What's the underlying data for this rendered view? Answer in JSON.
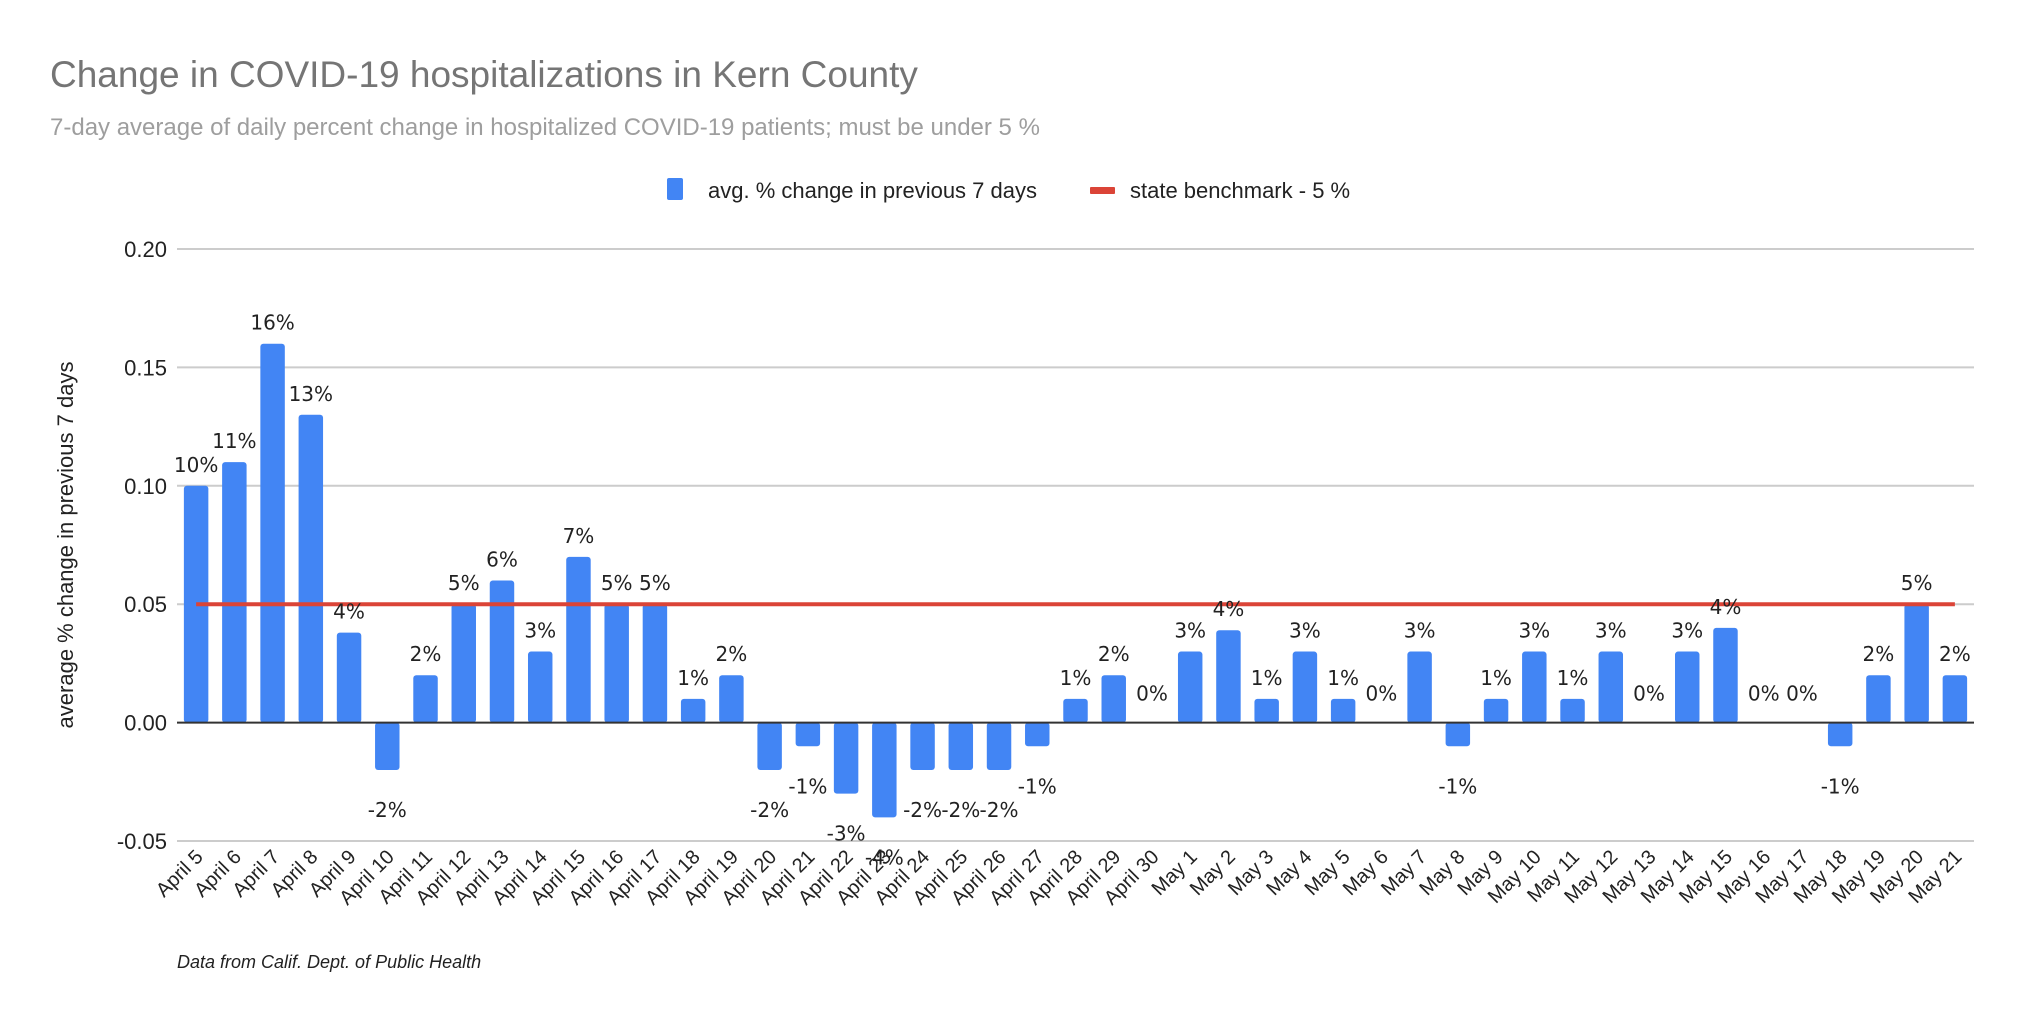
{
  "chart_data": {
    "type": "bar",
    "title": "Change in COVID-19 hospitalizations in Kern County",
    "subtitle": "7-day average of daily percent change in hospitalized COVID-19 patients; must be under 5 %",
    "xlabel": "",
    "ylabel": "average % change in previous 7 days",
    "ylim": [
      -0.05,
      0.2
    ],
    "yticks": [
      -0.05,
      0.0,
      0.05,
      0.1,
      0.15,
      0.2
    ],
    "ytick_labels": [
      "-0.05",
      "0.00",
      "0.05",
      "0.10",
      "0.15",
      "0.20"
    ],
    "grid": true,
    "legend_position": "top-center",
    "categories": [
      "April 5",
      "April 6",
      "April 7",
      "April 8",
      "April 9",
      "April 10",
      "April 11",
      "April 12",
      "April 13",
      "April 14",
      "April 15",
      "April 16",
      "April 17",
      "April 18",
      "April 19",
      "April 20",
      "April 21",
      "April 22",
      "April 23",
      "April 24",
      "April 25",
      "April 26",
      "April 27",
      "April 28",
      "April 29",
      "April 30",
      "May 1",
      "May 2",
      "May 3",
      "May 4",
      "May 5",
      "May 6",
      "May 7",
      "May 8",
      "May 9",
      "May 10",
      "May 11",
      "May 12",
      "May 13",
      "May 14",
      "May 15",
      "May 16",
      "May 17",
      "May 18",
      "May 19",
      "May 20",
      "May 21"
    ],
    "series": [
      {
        "name": "avg. % change in previous 7 days",
        "type": "bar",
        "color": "#4285f4",
        "values": [
          0.1,
          0.11,
          0.16,
          0.13,
          0.038,
          -0.02,
          0.02,
          0.05,
          0.06,
          0.03,
          0.07,
          0.05,
          0.05,
          0.01,
          0.02,
          -0.02,
          -0.01,
          -0.03,
          -0.04,
          -0.02,
          -0.02,
          -0.02,
          -0.01,
          0.01,
          0.02,
          0.0,
          0.03,
          0.039,
          0.01,
          0.03,
          0.01,
          0.0,
          0.03,
          -0.01,
          0.01,
          0.03,
          0.01,
          0.03,
          0.0,
          0.03,
          0.04,
          0.0,
          0.0,
          -0.01,
          0.02,
          0.05,
          0.02
        ],
        "labels": [
          "10%",
          "11%",
          "16%",
          "13%",
          "4%",
          "-2%",
          "2%",
          "5%",
          "6%",
          "3%",
          "7%",
          "5%",
          "5%",
          "1%",
          "2%",
          "-2%",
          "-1%",
          "-3%",
          "-4%",
          "-2%",
          "-2%",
          "-2%",
          "-1%",
          "1%",
          "2%",
          "0%",
          "3%",
          "4%",
          "1%",
          "3%",
          "1%",
          "0%",
          "3%",
          "-1%",
          "1%",
          "3%",
          "1%",
          "3%",
          "0%",
          "3%",
          "4%",
          "0%",
          "0%",
          "-1%",
          "2%",
          "5%",
          "2%"
        ]
      },
      {
        "name": "state benchmark - 5 %",
        "type": "line",
        "color": "#db4437",
        "value": 0.05
      }
    ],
    "footer": "Data from Calif. Dept. of Public Health"
  }
}
